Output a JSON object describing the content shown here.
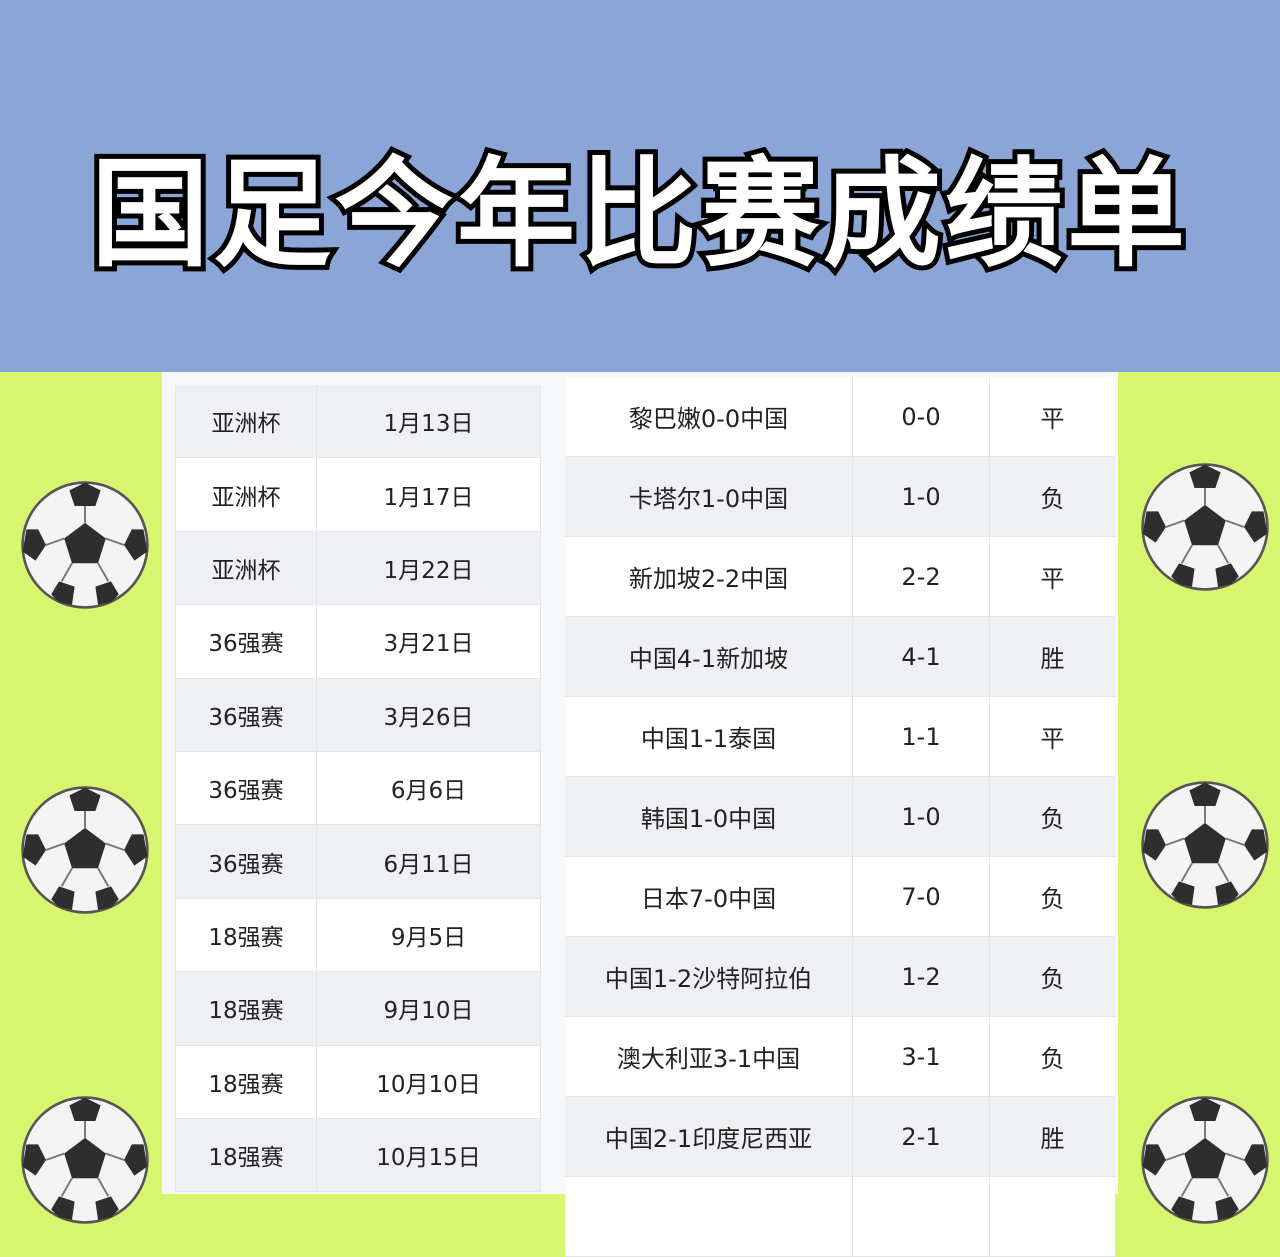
{
  "title": "国足今年比赛成绩单",
  "stages": [
    {
      "stage": "亚洲杯",
      "date": "1月13日"
    },
    {
      "stage": "亚洲杯",
      "date": "1月17日"
    },
    {
      "stage": "亚洲杯",
      "date": "1月22日"
    },
    {
      "stage": "36强赛",
      "date": "3月21日"
    },
    {
      "stage": "36强赛",
      "date": "3月26日"
    },
    {
      "stage": "36强赛",
      "date": "6月6日"
    },
    {
      "stage": "36强赛",
      "date": "6月11日"
    },
    {
      "stage": "18强赛",
      "date": "9月5日"
    },
    {
      "stage": "18强赛",
      "date": "9月10日"
    },
    {
      "stage": "18强赛",
      "date": "10月10日"
    },
    {
      "stage": "18强赛",
      "date": "10月15日"
    }
  ],
  "results": [
    {
      "match": "黎巴嫩0-0中国",
      "score": "0-0",
      "outcome": "平"
    },
    {
      "match": "卡塔尔1-0中国",
      "score": "1-0",
      "outcome": "负"
    },
    {
      "match": "新加坡2-2中国",
      "score": "2-2",
      "outcome": "平"
    },
    {
      "match": "中国4-1新加坡",
      "score": "4-1",
      "outcome": "胜"
    },
    {
      "match": "中国1-1泰国",
      "score": "1-1",
      "outcome": "平"
    },
    {
      "match": "韩国1-0中国",
      "score": "1-0",
      "outcome": "负"
    },
    {
      "match": "日本7-0中国",
      "score": "7-0",
      "outcome": "负"
    },
    {
      "match": "中国1-2沙特阿拉伯",
      "score": "1-2",
      "outcome": "负"
    },
    {
      "match": "澳大利亚3-1中国",
      "score": "3-1",
      "outcome": "负"
    },
    {
      "match": "中国2-1印度尼西亚",
      "score": "2-1",
      "outcome": "胜"
    },
    {
      "match": "",
      "score": "",
      "outcome": ""
    }
  ],
  "colors": {
    "banner": "#8ba6d6",
    "background": "#d7f56f"
  },
  "icons": [
    "soccer-ball-icon"
  ]
}
